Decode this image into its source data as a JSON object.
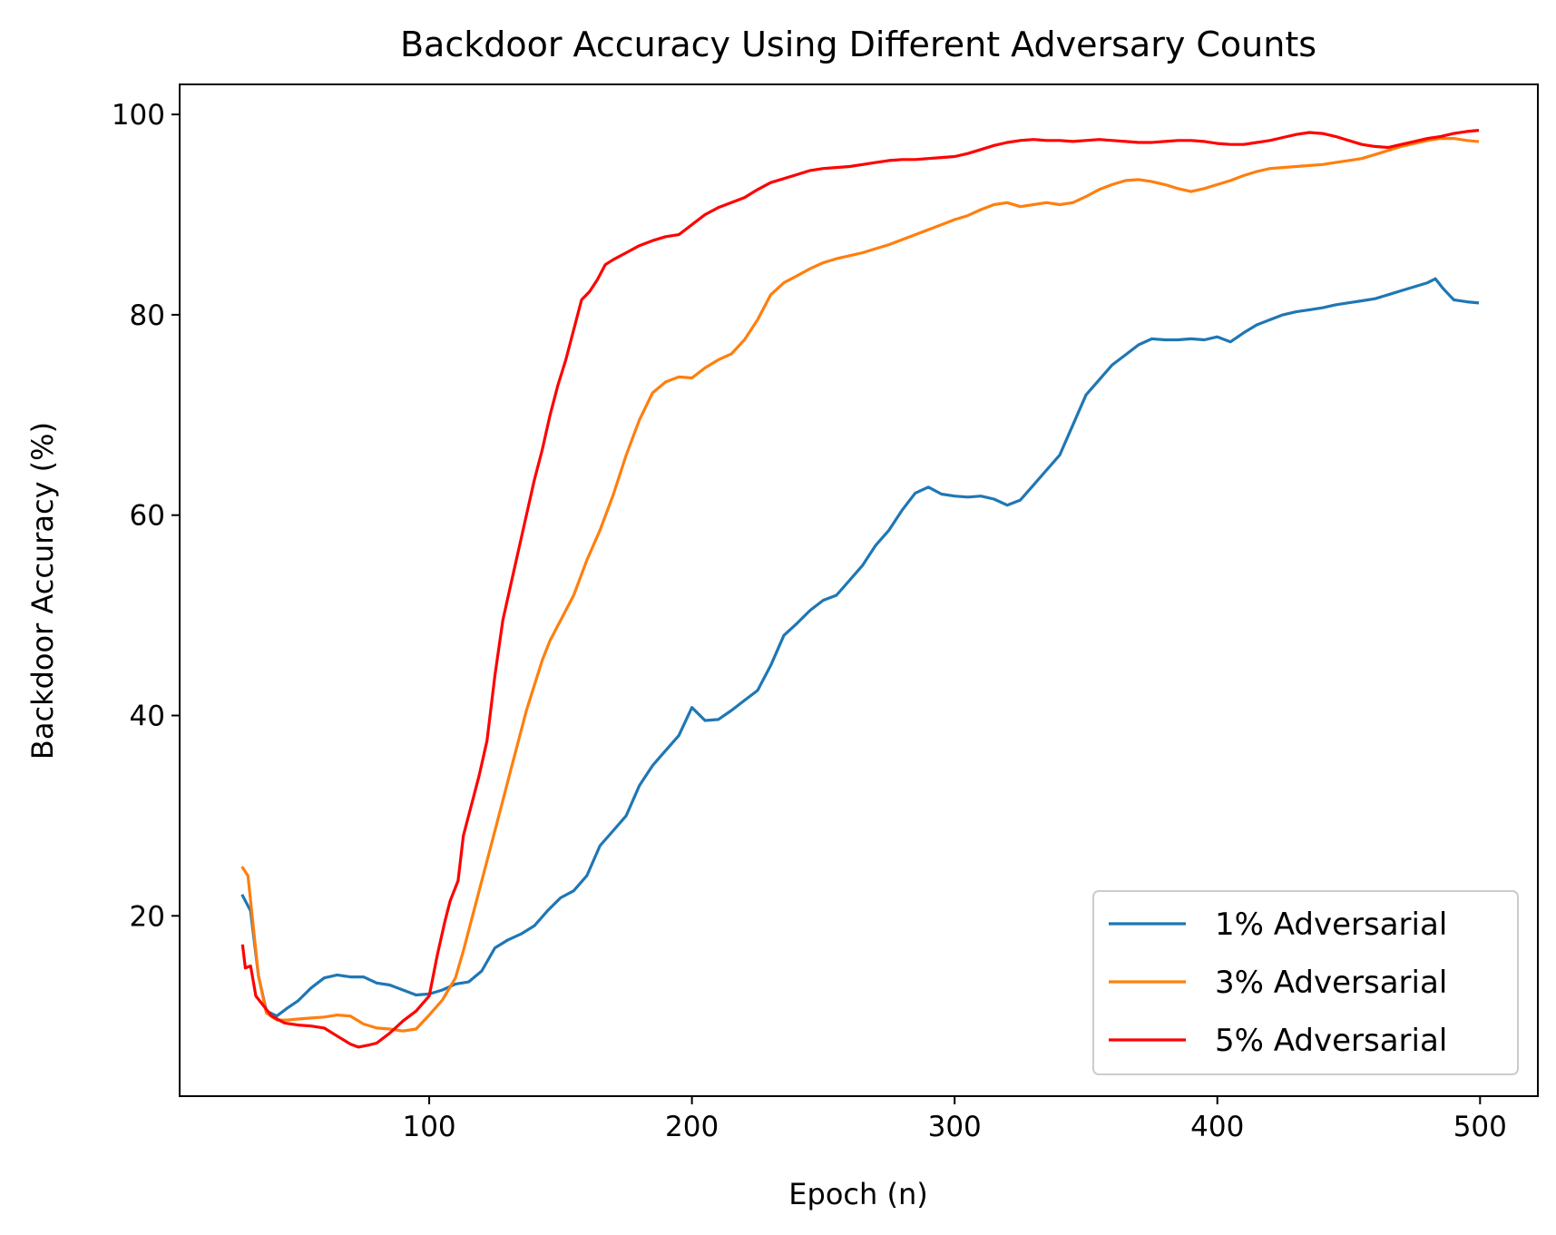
{
  "chart_data": {
    "type": "line",
    "title": "Backdoor Accuracy Using Different Adversary Counts",
    "xlabel": "Epoch (n)",
    "ylabel": "Backdoor Accuracy (%)",
    "xlim": [
      5,
      522
    ],
    "ylim": [
      2,
      103
    ],
    "xticks": [
      100,
      200,
      300,
      400,
      500
    ],
    "yticks": [
      20,
      40,
      60,
      80,
      100
    ],
    "grid": false,
    "legend": "lower right",
    "series": [
      {
        "name": "1% Adversarial",
        "color": "#1f77b4",
        "points": [
          [
            29,
            22
          ],
          [
            32,
            20.5
          ],
          [
            35,
            14
          ],
          [
            38,
            10.5
          ],
          [
            42,
            10
          ],
          [
            46,
            10.8
          ],
          [
            50,
            11.5
          ],
          [
            55,
            12.8
          ],
          [
            60,
            13.8
          ],
          [
            65,
            14.1
          ],
          [
            70,
            13.9
          ],
          [
            75,
            13.9
          ],
          [
            80,
            13.3
          ],
          [
            85,
            13.1
          ],
          [
            90,
            12.6
          ],
          [
            95,
            12.1
          ],
          [
            100,
            12.2
          ],
          [
            105,
            12.6
          ],
          [
            110,
            13.2
          ],
          [
            115,
            13.4
          ],
          [
            120,
            14.5
          ],
          [
            125,
            16.8
          ],
          [
            130,
            17.6
          ],
          [
            135,
            18.2
          ],
          [
            140,
            19
          ],
          [
            145,
            20.5
          ],
          [
            150,
            21.8
          ],
          [
            155,
            22.5
          ],
          [
            160,
            24
          ],
          [
            165,
            27
          ],
          [
            170,
            28.5
          ],
          [
            175,
            30
          ],
          [
            180,
            33
          ],
          [
            185,
            35
          ],
          [
            190,
            36.5
          ],
          [
            195,
            38
          ],
          [
            200,
            40.8
          ],
          [
            205,
            39.5
          ],
          [
            210,
            39.6
          ],
          [
            215,
            40.5
          ],
          [
            220,
            41.5
          ],
          [
            225,
            42.5
          ],
          [
            230,
            45
          ],
          [
            235,
            48
          ],
          [
            240,
            49.2
          ],
          [
            245,
            50.5
          ],
          [
            250,
            51.5
          ],
          [
            255,
            52
          ],
          [
            260,
            53.5
          ],
          [
            265,
            55
          ],
          [
            270,
            57
          ],
          [
            275,
            58.5
          ],
          [
            280,
            60.5
          ],
          [
            285,
            62.2
          ],
          [
            290,
            62.8
          ],
          [
            295,
            62.1
          ],
          [
            300,
            61.9
          ],
          [
            305,
            61.8
          ],
          [
            310,
            61.9
          ],
          [
            315,
            61.6
          ],
          [
            320,
            61
          ],
          [
            325,
            61.5
          ],
          [
            330,
            63
          ],
          [
            335,
            64.5
          ],
          [
            340,
            66
          ],
          [
            345,
            69
          ],
          [
            350,
            72
          ],
          [
            355,
            73.5
          ],
          [
            360,
            75
          ],
          [
            365,
            76
          ],
          [
            370,
            77
          ],
          [
            375,
            77.6
          ],
          [
            380,
            77.5
          ],
          [
            385,
            77.5
          ],
          [
            390,
            77.6
          ],
          [
            395,
            77.5
          ],
          [
            400,
            77.8
          ],
          [
            405,
            77.3
          ],
          [
            410,
            78.2
          ],
          [
            415,
            79
          ],
          [
            420,
            79.5
          ],
          [
            425,
            80
          ],
          [
            430,
            80.3
          ],
          [
            435,
            80.5
          ],
          [
            440,
            80.7
          ],
          [
            445,
            81
          ],
          [
            450,
            81.2
          ],
          [
            455,
            81.4
          ],
          [
            460,
            81.6
          ],
          [
            465,
            82
          ],
          [
            470,
            82.4
          ],
          [
            475,
            82.8
          ],
          [
            480,
            83.2
          ],
          [
            483,
            83.6
          ],
          [
            486,
            82.6
          ],
          [
            490,
            81.5
          ],
          [
            495,
            81.3
          ],
          [
            499,
            81.2
          ]
        ]
      },
      {
        "name": "3% Adversarial",
        "color": "#ff7f0e",
        "points": [
          [
            29,
            24.8
          ],
          [
            31,
            24
          ],
          [
            33,
            19
          ],
          [
            35,
            14
          ],
          [
            38,
            10.3
          ],
          [
            42,
            9.6
          ],
          [
            46,
            9.6
          ],
          [
            50,
            9.7
          ],
          [
            55,
            9.8
          ],
          [
            60,
            9.9
          ],
          [
            65,
            10.1
          ],
          [
            70,
            10
          ],
          [
            75,
            9.2
          ],
          [
            80,
            8.8
          ],
          [
            85,
            8.7
          ],
          [
            90,
            8.5
          ],
          [
            95,
            8.7
          ],
          [
            100,
            10.1
          ],
          [
            105,
            11.6
          ],
          [
            110,
            13.8
          ],
          [
            113,
            16.5
          ],
          [
            116,
            19.5
          ],
          [
            119,
            22.5
          ],
          [
            122,
            25.5
          ],
          [
            125,
            28.5
          ],
          [
            128,
            31.5
          ],
          [
            131,
            34.5
          ],
          [
            134,
            37.5
          ],
          [
            137,
            40.5
          ],
          [
            140,
            43
          ],
          [
            143,
            45.5
          ],
          [
            146,
            47.5
          ],
          [
            150,
            49.5
          ],
          [
            155,
            52
          ],
          [
            160,
            55.5
          ],
          [
            165,
            58.5
          ],
          [
            170,
            62
          ],
          [
            175,
            66
          ],
          [
            180,
            69.5
          ],
          [
            185,
            72.2
          ],
          [
            190,
            73.3
          ],
          [
            195,
            73.8
          ],
          [
            200,
            73.7
          ],
          [
            205,
            74.7
          ],
          [
            210,
            75.5
          ],
          [
            215,
            76.1
          ],
          [
            220,
            77.5
          ],
          [
            225,
            79.5
          ],
          [
            230,
            82
          ],
          [
            235,
            83.2
          ],
          [
            240,
            83.9
          ],
          [
            245,
            84.6
          ],
          [
            250,
            85.2
          ],
          [
            255,
            85.6
          ],
          [
            260,
            85.9
          ],
          [
            265,
            86.2
          ],
          [
            270,
            86.6
          ],
          [
            275,
            87
          ],
          [
            280,
            87.5
          ],
          [
            285,
            88
          ],
          [
            290,
            88.5
          ],
          [
            295,
            89
          ],
          [
            300,
            89.5
          ],
          [
            305,
            89.9
          ],
          [
            310,
            90.5
          ],
          [
            315,
            91
          ],
          [
            320,
            91.2
          ],
          [
            325,
            90.8
          ],
          [
            330,
            91
          ],
          [
            335,
            91.2
          ],
          [
            340,
            91
          ],
          [
            345,
            91.2
          ],
          [
            350,
            91.8
          ],
          [
            355,
            92.5
          ],
          [
            360,
            93
          ],
          [
            365,
            93.4
          ],
          [
            370,
            93.5
          ],
          [
            375,
            93.3
          ],
          [
            380,
            93
          ],
          [
            385,
            92.6
          ],
          [
            390,
            92.3
          ],
          [
            395,
            92.6
          ],
          [
            400,
            93
          ],
          [
            405,
            93.4
          ],
          [
            410,
            93.9
          ],
          [
            415,
            94.3
          ],
          [
            420,
            94.6
          ],
          [
            425,
            94.7
          ],
          [
            430,
            94.8
          ],
          [
            435,
            94.9
          ],
          [
            440,
            95
          ],
          [
            445,
            95.2
          ],
          [
            450,
            95.4
          ],
          [
            455,
            95.6
          ],
          [
            460,
            96
          ],
          [
            465,
            96.4
          ],
          [
            470,
            96.8
          ],
          [
            475,
            97.1
          ],
          [
            480,
            97.4
          ],
          [
            485,
            97.6
          ],
          [
            490,
            97.6
          ],
          [
            495,
            97.4
          ],
          [
            499,
            97.3
          ]
        ]
      },
      {
        "name": "5% Adversarial",
        "color": "#ff0000",
        "points": [
          [
            29,
            17
          ],
          [
            30,
            14.8
          ],
          [
            32,
            15
          ],
          [
            34,
            12
          ],
          [
            37,
            11
          ],
          [
            40,
            10
          ],
          [
            45,
            9.3
          ],
          [
            50,
            9.1
          ],
          [
            55,
            9
          ],
          [
            60,
            8.8
          ],
          [
            65,
            8
          ],
          [
            70,
            7.2
          ],
          [
            73,
            6.9
          ],
          [
            77,
            7.1
          ],
          [
            80,
            7.3
          ],
          [
            85,
            8.3
          ],
          [
            90,
            9.5
          ],
          [
            95,
            10.5
          ],
          [
            100,
            12
          ],
          [
            103,
            16
          ],
          [
            106,
            19.5
          ],
          [
            108,
            21.5
          ],
          [
            111,
            23.5
          ],
          [
            113,
            28
          ],
          [
            116,
            31
          ],
          [
            119,
            34
          ],
          [
            122,
            37.5
          ],
          [
            125,
            44
          ],
          [
            128,
            49.5
          ],
          [
            131,
            53
          ],
          [
            134,
            56.5
          ],
          [
            137,
            60
          ],
          [
            140,
            63.5
          ],
          [
            143,
            66.5
          ],
          [
            146,
            70
          ],
          [
            149,
            73
          ],
          [
            152,
            75.5
          ],
          [
            155,
            78.5
          ],
          [
            158,
            81.5
          ],
          [
            161,
            82.3
          ],
          [
            164,
            83.5
          ],
          [
            167,
            85
          ],
          [
            170,
            85.5
          ],
          [
            175,
            86.2
          ],
          [
            180,
            86.9
          ],
          [
            185,
            87.4
          ],
          [
            190,
            87.8
          ],
          [
            195,
            88
          ],
          [
            200,
            89
          ],
          [
            205,
            90
          ],
          [
            210,
            90.7
          ],
          [
            215,
            91.2
          ],
          [
            220,
            91.7
          ],
          [
            225,
            92.5
          ],
          [
            230,
            93.2
          ],
          [
            235,
            93.6
          ],
          [
            240,
            94
          ],
          [
            245,
            94.4
          ],
          [
            250,
            94.6
          ],
          [
            255,
            94.7
          ],
          [
            260,
            94.8
          ],
          [
            265,
            95
          ],
          [
            270,
            95.2
          ],
          [
            275,
            95.4
          ],
          [
            280,
            95.5
          ],
          [
            285,
            95.5
          ],
          [
            290,
            95.6
          ],
          [
            295,
            95.7
          ],
          [
            300,
            95.8
          ],
          [
            305,
            96.1
          ],
          [
            310,
            96.5
          ],
          [
            315,
            96.9
          ],
          [
            320,
            97.2
          ],
          [
            325,
            97.4
          ],
          [
            330,
            97.5
          ],
          [
            335,
            97.4
          ],
          [
            340,
            97.4
          ],
          [
            345,
            97.3
          ],
          [
            350,
            97.4
          ],
          [
            355,
            97.5
          ],
          [
            360,
            97.4
          ],
          [
            365,
            97.3
          ],
          [
            370,
            97.2
          ],
          [
            375,
            97.2
          ],
          [
            380,
            97.3
          ],
          [
            385,
            97.4
          ],
          [
            390,
            97.4
          ],
          [
            395,
            97.3
          ],
          [
            400,
            97.1
          ],
          [
            405,
            97
          ],
          [
            410,
            97
          ],
          [
            415,
            97.2
          ],
          [
            420,
            97.4
          ],
          [
            425,
            97.7
          ],
          [
            430,
            98
          ],
          [
            435,
            98.2
          ],
          [
            440,
            98.1
          ],
          [
            445,
            97.8
          ],
          [
            450,
            97.4
          ],
          [
            455,
            97
          ],
          [
            460,
            96.8
          ],
          [
            465,
            96.7
          ],
          [
            470,
            97
          ],
          [
            475,
            97.3
          ],
          [
            480,
            97.6
          ],
          [
            485,
            97.8
          ],
          [
            490,
            98.1
          ],
          [
            495,
            98.3
          ],
          [
            499,
            98.4
          ]
        ]
      }
    ]
  }
}
